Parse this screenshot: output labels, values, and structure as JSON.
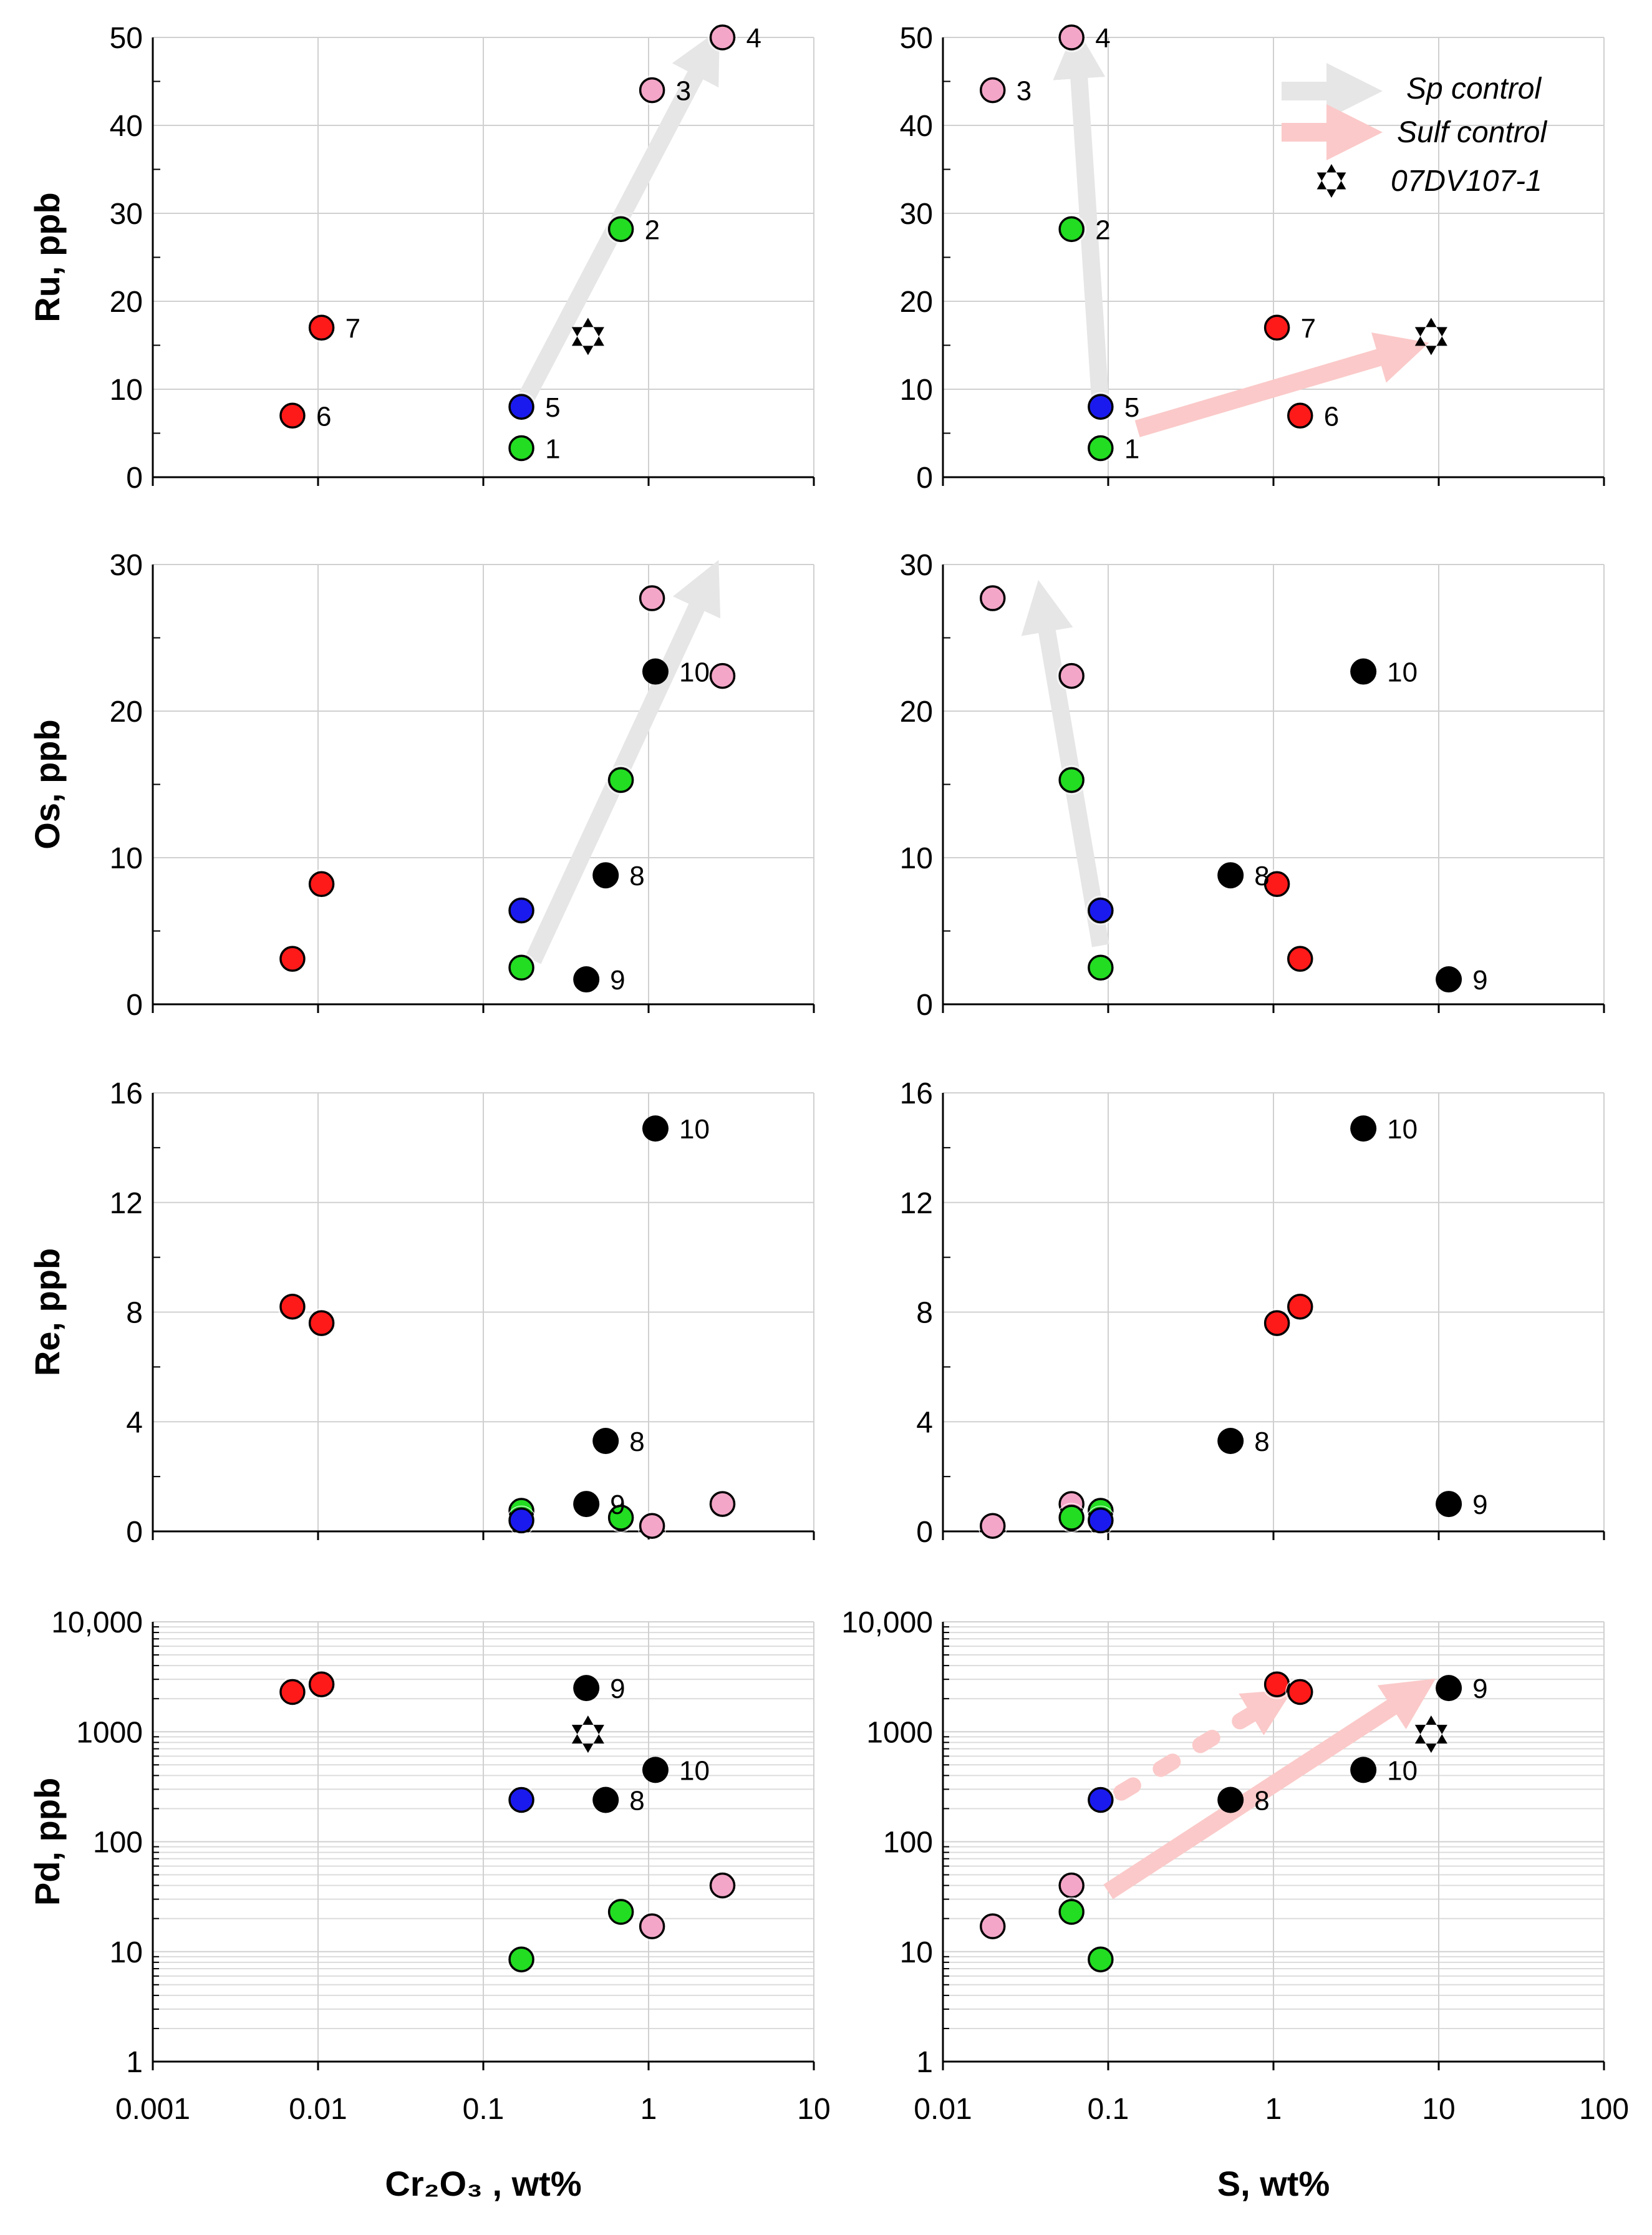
{
  "figure": {
    "colors": {
      "red": "#ff1a1a",
      "green": "#22dd22",
      "blue": "#1a1aee",
      "pink": "#f4a6c8",
      "black": "#000000",
      "grid": "#d0d0d0",
      "sp_arrow": "#e6e6e6",
      "sulf_arrow": "#fbc9c9"
    },
    "legend": {
      "sp_label": "Sp control",
      "sulf_label": "Sulf control",
      "star_label": "07DV107-1"
    }
  },
  "chart_data": [
    {
      "id": "ru-cr",
      "type": "scatter",
      "title": "",
      "ylabel": "Ru, ppb",
      "xlabel": "",
      "xscale": "log",
      "xlim": [
        0.001,
        10
      ],
      "ylim": [
        0,
        50
      ],
      "yscale": "linear",
      "yticks": [
        0,
        10,
        20,
        30,
        40,
        50
      ],
      "ytick_labels": [
        "0",
        "10",
        "20",
        "30",
        "40",
        "50"
      ],
      "xtick_labels": [],
      "points": [
        {
          "x": 0.007,
          "y": 7,
          "color": "red",
          "label": "6"
        },
        {
          "x": 0.0105,
          "y": 17,
          "color": "red",
          "label": "7"
        },
        {
          "x": 0.17,
          "y": 8,
          "color": "blue",
          "label": "5"
        },
        {
          "x": 0.17,
          "y": 3.3,
          "color": "green",
          "label": "1"
        },
        {
          "x": 0.68,
          "y": 28.2,
          "color": "green",
          "label": "2"
        },
        {
          "x": 1.05,
          "y": 44,
          "color": "pink",
          "label": "3"
        },
        {
          "x": 2.8,
          "y": 50,
          "color": "pink",
          "label": "4"
        }
      ],
      "stars": [
        {
          "x": 0.43,
          "y": 16
        }
      ],
      "arrows": [
        {
          "from": [
            0.17,
            8
          ],
          "to": [
            2.3,
            48.5
          ],
          "kind": "sp"
        }
      ]
    },
    {
      "id": "ru-s",
      "type": "scatter",
      "title": "",
      "ylabel": "",
      "xlabel": "",
      "xscale": "log",
      "xlim": [
        0.01,
        100
      ],
      "ylim": [
        0,
        50
      ],
      "yscale": "linear",
      "yticks": [
        0,
        10,
        20,
        30,
        40,
        50
      ],
      "ytick_labels": [
        "0",
        "10",
        "20",
        "30",
        "40",
        "50"
      ],
      "xtick_labels": [],
      "points": [
        {
          "x": 0.02,
          "y": 44,
          "color": "pink",
          "label": "3"
        },
        {
          "x": 0.06,
          "y": 50,
          "color": "pink",
          "label": "4"
        },
        {
          "x": 0.06,
          "y": 28.2,
          "color": "green",
          "label": "2"
        },
        {
          "x": 0.09,
          "y": 8,
          "color": "blue",
          "label": "5"
        },
        {
          "x": 0.09,
          "y": 3.3,
          "color": "green",
          "label": "1"
        },
        {
          "x": 1.05,
          "y": 17,
          "color": "red",
          "label": "7"
        },
        {
          "x": 1.45,
          "y": 7,
          "color": "red",
          "label": "6"
        }
      ],
      "stars": [
        {
          "x": 9,
          "y": 16
        }
      ],
      "arrows": [
        {
          "from": [
            0.09,
            8
          ],
          "to": [
            0.065,
            48.5
          ],
          "kind": "sp"
        },
        {
          "from": [
            0.15,
            5.5
          ],
          "to": [
            6.3,
            14.5
          ],
          "kind": "sulf"
        }
      ],
      "legend": true
    },
    {
      "id": "os-cr",
      "type": "scatter",
      "title": "",
      "ylabel": "Os, ppb",
      "xlabel": "",
      "xscale": "log",
      "xlim": [
        0.001,
        10
      ],
      "ylim": [
        0,
        30
      ],
      "yscale": "linear",
      "yticks": [
        0,
        10,
        20,
        30
      ],
      "ytick_labels": [
        "0",
        "10",
        "20",
        "30"
      ],
      "xtick_labels": [],
      "points": [
        {
          "x": 0.007,
          "y": 3.1,
          "color": "red",
          "label": ""
        },
        {
          "x": 0.0105,
          "y": 8.2,
          "color": "red",
          "label": ""
        },
        {
          "x": 0.17,
          "y": 6.4,
          "color": "blue",
          "label": ""
        },
        {
          "x": 0.17,
          "y": 2.5,
          "color": "green",
          "label": ""
        },
        {
          "x": 0.68,
          "y": 15.3,
          "color": "green",
          "label": ""
        },
        {
          "x": 1.05,
          "y": 27.7,
          "color": "pink",
          "label": ""
        },
        {
          "x": 2.8,
          "y": 22.4,
          "color": "pink",
          "label": ""
        },
        {
          "x": 0.55,
          "y": 8.8,
          "color": "black",
          "label": "8"
        },
        {
          "x": 0.42,
          "y": 1.7,
          "color": "black",
          "label": "9"
        },
        {
          "x": 1.1,
          "y": 22.7,
          "color": "black",
          "label": "10"
        }
      ],
      "stars": [],
      "arrows": [
        {
          "from": [
            0.2,
            3
          ],
          "to": [
            2.3,
            28.8
          ],
          "kind": "sp"
        }
      ]
    },
    {
      "id": "os-s",
      "type": "scatter",
      "title": "",
      "ylabel": "",
      "xlabel": "",
      "xscale": "log",
      "xlim": [
        0.01,
        100
      ],
      "ylim": [
        0,
        30
      ],
      "yscale": "linear",
      "yticks": [
        0,
        10,
        20,
        30
      ],
      "ytick_labels": [
        "0",
        "10",
        "20",
        "30"
      ],
      "xtick_labels": [],
      "points": [
        {
          "x": 0.02,
          "y": 27.7,
          "color": "pink",
          "label": ""
        },
        {
          "x": 0.06,
          "y": 22.4,
          "color": "pink",
          "label": ""
        },
        {
          "x": 0.06,
          "y": 15.3,
          "color": "green",
          "label": ""
        },
        {
          "x": 0.09,
          "y": 6.4,
          "color": "blue",
          "label": ""
        },
        {
          "x": 0.09,
          "y": 2.5,
          "color": "green",
          "label": ""
        },
        {
          "x": 1.05,
          "y": 8.2,
          "color": "red",
          "label": ""
        },
        {
          "x": 1.45,
          "y": 3.1,
          "color": "red",
          "label": ""
        },
        {
          "x": 0.55,
          "y": 8.8,
          "color": "black",
          "label": "8"
        },
        {
          "x": 11.5,
          "y": 1.7,
          "color": "black",
          "label": "9"
        },
        {
          "x": 3.5,
          "y": 22.7,
          "color": "black",
          "label": "10"
        }
      ],
      "stars": [],
      "arrows": [
        {
          "from": [
            0.09,
            4
          ],
          "to": [
            0.04,
            27.3
          ],
          "kind": "sp"
        }
      ]
    },
    {
      "id": "re-cr",
      "type": "scatter",
      "title": "",
      "ylabel": "Re, ppb",
      "xlabel": "",
      "xscale": "log",
      "xlim": [
        0.001,
        10
      ],
      "ylim": [
        0,
        16
      ],
      "yscale": "linear",
      "yticks": [
        0,
        4,
        8,
        12,
        16
      ],
      "ytick_labels": [
        "0",
        "4",
        "8",
        "12",
        "16"
      ],
      "xtick_labels": [],
      "points": [
        {
          "x": 0.007,
          "y": 8.2,
          "color": "red",
          "label": ""
        },
        {
          "x": 0.0105,
          "y": 7.6,
          "color": "red",
          "label": ""
        },
        {
          "x": 0.17,
          "y": 0.75,
          "color": "green",
          "label": ""
        },
        {
          "x": 0.17,
          "y": 0.4,
          "color": "blue",
          "label": ""
        },
        {
          "x": 0.68,
          "y": 0.5,
          "color": "green",
          "label": ""
        },
        {
          "x": 1.05,
          "y": 0.2,
          "color": "pink",
          "label": ""
        },
        {
          "x": 2.8,
          "y": 1.0,
          "color": "pink",
          "label": ""
        },
        {
          "x": 0.55,
          "y": 3.3,
          "color": "black",
          "label": "8"
        },
        {
          "x": 0.42,
          "y": 1.0,
          "color": "black",
          "label": "9"
        },
        {
          "x": 1.1,
          "y": 14.7,
          "color": "black",
          "label": "10"
        }
      ],
      "stars": [],
      "arrows": []
    },
    {
      "id": "re-s",
      "type": "scatter",
      "title": "",
      "ylabel": "",
      "xlabel": "",
      "xscale": "log",
      "xlim": [
        0.01,
        100
      ],
      "ylim": [
        0,
        16
      ],
      "yscale": "linear",
      "yticks": [
        0,
        4,
        8,
        12,
        16
      ],
      "ytick_labels": [
        "0",
        "4",
        "8",
        "12",
        "16"
      ],
      "xtick_labels": [],
      "points": [
        {
          "x": 0.02,
          "y": 0.2,
          "color": "pink",
          "label": ""
        },
        {
          "x": 0.06,
          "y": 1.0,
          "color": "pink",
          "label": ""
        },
        {
          "x": 0.06,
          "y": 0.5,
          "color": "green",
          "label": ""
        },
        {
          "x": 0.09,
          "y": 0.75,
          "color": "green",
          "label": ""
        },
        {
          "x": 0.09,
          "y": 0.4,
          "color": "blue",
          "label": ""
        },
        {
          "x": 1.05,
          "y": 7.6,
          "color": "red",
          "label": ""
        },
        {
          "x": 1.45,
          "y": 8.2,
          "color": "red",
          "label": ""
        },
        {
          "x": 0.55,
          "y": 3.3,
          "color": "black",
          "label": "8"
        },
        {
          "x": 11.5,
          "y": 1.0,
          "color": "black",
          "label": "9"
        },
        {
          "x": 3.5,
          "y": 14.7,
          "color": "black",
          "label": "10"
        }
      ],
      "stars": [],
      "arrows": []
    },
    {
      "id": "pd-cr",
      "type": "scatter",
      "title": "",
      "ylabel": "Pd, ppb",
      "xlabel": "Cr₂O₃ , wt%",
      "xscale": "log",
      "xlim": [
        0.001,
        10
      ],
      "ylim": [
        1,
        10000
      ],
      "yscale": "log",
      "yticks": [
        1,
        10,
        100,
        1000,
        10000
      ],
      "ytick_labels": [
        "1",
        "10",
        "100",
        "1000",
        "10,000"
      ],
      "xtick_labels": [
        "0.001",
        "0.01",
        "0.1",
        "1",
        "10"
      ],
      "points": [
        {
          "x": 0.007,
          "y": 2300,
          "color": "red",
          "label": ""
        },
        {
          "x": 0.0105,
          "y": 2700,
          "color": "red",
          "label": ""
        },
        {
          "x": 0.17,
          "y": 240,
          "color": "blue",
          "label": ""
        },
        {
          "x": 0.17,
          "y": 8.5,
          "color": "green",
          "label": ""
        },
        {
          "x": 0.68,
          "y": 23,
          "color": "green",
          "label": ""
        },
        {
          "x": 1.05,
          "y": 17,
          "color": "pink",
          "label": ""
        },
        {
          "x": 2.8,
          "y": 40,
          "color": "pink",
          "label": ""
        },
        {
          "x": 0.42,
          "y": 2500,
          "color": "black",
          "label": "9"
        },
        {
          "x": 1.1,
          "y": 450,
          "color": "black",
          "label": "10"
        },
        {
          "x": 0.55,
          "y": 240,
          "color": "black",
          "label": "8"
        }
      ],
      "stars": [
        {
          "x": 0.43,
          "y": 950
        }
      ],
      "arrows": []
    },
    {
      "id": "pd-s",
      "type": "scatter",
      "title": "",
      "ylabel": "",
      "xlabel": "S, wt%",
      "xscale": "log",
      "xlim": [
        0.01,
        100
      ],
      "ylim": [
        1,
        10000
      ],
      "yscale": "log",
      "yticks": [
        1,
        10,
        100,
        1000,
        10000
      ],
      "ytick_labels": [
        "1",
        "10",
        "100",
        "1000",
        "10,000"
      ],
      "xtick_labels": [
        "0.01",
        "0.1",
        "1",
        "10",
        "100"
      ],
      "points": [
        {
          "x": 0.02,
          "y": 17,
          "color": "pink",
          "label": ""
        },
        {
          "x": 0.06,
          "y": 40,
          "color": "pink",
          "label": ""
        },
        {
          "x": 0.06,
          "y": 23,
          "color": "green",
          "label": ""
        },
        {
          "x": 0.09,
          "y": 8.5,
          "color": "green",
          "label": ""
        },
        {
          "x": 0.09,
          "y": 240,
          "color": "blue",
          "label": ""
        },
        {
          "x": 1.05,
          "y": 2700,
          "color": "red",
          "label": ""
        },
        {
          "x": 1.45,
          "y": 2300,
          "color": "red",
          "label": ""
        },
        {
          "x": 11.5,
          "y": 2500,
          "color": "black",
          "label": "9"
        },
        {
          "x": 3.5,
          "y": 450,
          "color": "black",
          "label": "10"
        },
        {
          "x": 0.55,
          "y": 240,
          "color": "black",
          "label": "8"
        }
      ],
      "stars": [
        {
          "x": 9,
          "y": 950
        }
      ],
      "arrows": [
        {
          "from": [
            0.1,
            35
          ],
          "to": [
            7.2,
            2300
          ],
          "kind": "sulf"
        },
        {
          "from": [
            0.12,
            280
          ],
          "to": [
            1.0,
            1900
          ],
          "kind": "sulf-dash"
        }
      ]
    }
  ]
}
